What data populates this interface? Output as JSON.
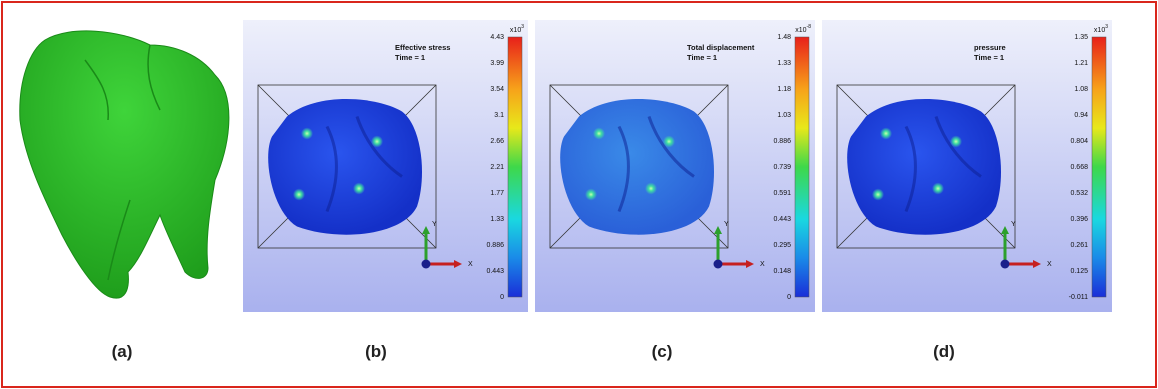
{
  "panels": [
    {
      "label": "(a)"
    },
    {
      "label": "(b)",
      "title": "Effective stress",
      "time": "Time = 1",
      "scale_base": "x10",
      "scale_exp": "3",
      "ticks": [
        "4.43",
        "3.99",
        "3.54",
        "3.1",
        "2.66",
        "2.21",
        "1.77",
        "1.33",
        "0.886",
        "0.443",
        "0"
      ],
      "axis_y": "Y",
      "axis_x": "X"
    },
    {
      "label": "(c)",
      "title": "Total displacement",
      "time": "Time = 1",
      "scale_base": "x10",
      "scale_exp": "-8",
      "ticks": [
        "1.48",
        "1.33",
        "1.18",
        "1.03",
        "0.886",
        "0.739",
        "0.591",
        "0.443",
        "0.295",
        "0.148",
        "0"
      ],
      "axis_y": "Y",
      "axis_x": "X"
    },
    {
      "label": "(d)",
      "title": "pressure",
      "time": "Time = 1",
      "scale_base": "x10",
      "scale_exp": "3",
      "ticks": [
        "1.35",
        "1.21",
        "1.08",
        "0.94",
        "0.804",
        "0.668",
        "0.532",
        "0.396",
        "0.261",
        "0.125",
        "-0.011"
      ],
      "axis_y": "Y",
      "axis_x": "X"
    }
  ]
}
